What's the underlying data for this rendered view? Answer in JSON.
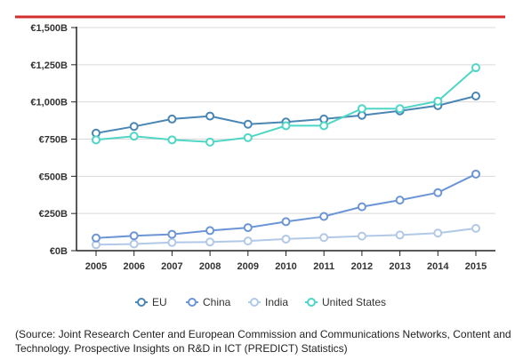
{
  "colors": {
    "top_rule": "#d32f2f",
    "axis": "#222222",
    "grid": "#d9d9d9"
  },
  "chart_data": {
    "type": "line",
    "title": "",
    "xlabel": "",
    "ylabel": "",
    "x": [
      "2005",
      "2006",
      "2007",
      "2008",
      "2009",
      "2010",
      "2011",
      "2012",
      "2013",
      "2014",
      "2015"
    ],
    "ylim": [
      0,
      1500
    ],
    "yticks": [
      0,
      250,
      500,
      750,
      1000,
      1250,
      1500
    ],
    "ytick_labels": [
      "€0B",
      "€250B",
      "€500B",
      "€750B",
      "€1,000B",
      "€1,250B",
      "€1,500B"
    ],
    "grid": true,
    "legend_position": "bottom",
    "series": [
      {
        "name": "EU",
        "color": "#4a86b4",
        "values": [
          790,
          835,
          885,
          905,
          850,
          865,
          885,
          910,
          940,
          975,
          1040
        ]
      },
      {
        "name": "China",
        "color": "#6c95d6",
        "values": [
          85,
          100,
          110,
          135,
          155,
          195,
          230,
          295,
          340,
          390,
          515
        ]
      },
      {
        "name": "India",
        "color": "#b1c9e6",
        "values": [
          40,
          45,
          55,
          58,
          65,
          78,
          88,
          98,
          105,
          118,
          150
        ]
      },
      {
        "name": "United States",
        "color": "#4fd6c6",
        "values": [
          745,
          770,
          745,
          730,
          760,
          840,
          840,
          955,
          955,
          1005,
          1230
        ]
      }
    ]
  },
  "source_note": "(Source: Joint Research Center and European Commission and Communications Networks, Content and Technology. Prospective Insights on R&D in ICT (PREDICT) Statistics)"
}
